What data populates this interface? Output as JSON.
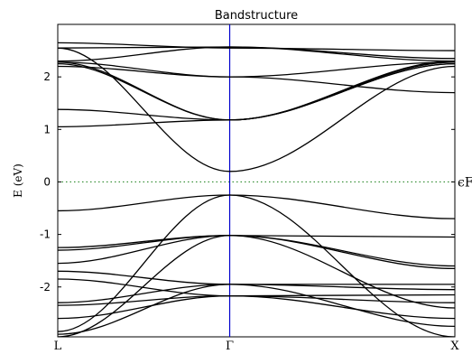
{
  "chart_data": {
    "type": "line",
    "title": "Bandstructure",
    "ylabel": "E (eV)",
    "ylim": [
      -2.95,
      3.0
    ],
    "x_ticks": [
      {
        "label": "L",
        "pos": 0.0
      },
      {
        "label": "Γ",
        "pos": 0.433
      },
      {
        "label": "X",
        "pos": 1.0
      }
    ],
    "y_ticks": [
      -2,
      -1,
      0,
      1,
      2
    ],
    "fermi": {
      "label": "ϵF",
      "energy": 0
    },
    "colors": {
      "bands": "#000000",
      "gamma_line": "#0000cc",
      "fermi_line": "#2e8b2e"
    },
    "series": [
      {
        "x": [
          0.0,
          0.433,
          1.0
        ],
        "y": [
          2.55,
          2.57,
          2.3
        ]
      },
      {
        "x": [
          0.0,
          0.433,
          1.0
        ],
        "y": [
          2.3,
          2.57,
          2.35
        ]
      },
      {
        "x": [
          0.0,
          0.433,
          1.0
        ],
        "y": [
          2.28,
          2.0,
          2.28
        ]
      },
      {
        "x": [
          0.0,
          0.433,
          1.0
        ],
        "y": [
          2.25,
          1.18,
          2.25
        ]
      },
      {
        "x": [
          0.0,
          0.433,
          1.0
        ],
        "y": [
          1.38,
          1.18,
          2.3
        ]
      },
      {
        "x": [
          0.0,
          0.433,
          1.0
        ],
        "y": [
          1.05,
          1.18,
          2.28
        ]
      },
      {
        "x": [
          0.0,
          0.433,
          1.0
        ],
        "y": [
          2.28,
          1.18,
          2.25
        ]
      },
      {
        "x": [
          0.0,
          0.433,
          1.0
        ],
        "y": [
          2.55,
          0.2,
          2.2
        ]
      },
      {
        "x": [
          0.0,
          0.433,
          1.0
        ],
        "y": [
          2.65,
          2.55,
          2.5
        ]
      },
      {
        "x": [
          0.0,
          0.433,
          1.0
        ],
        "y": [
          2.2,
          2.0,
          1.7
        ]
      },
      {
        "x": [
          0.0,
          0.433,
          1.0
        ],
        "y": [
          -0.55,
          -0.25,
          -0.7
        ]
      },
      {
        "x": [
          0.0,
          0.433,
          1.0
        ],
        "y": [
          -1.25,
          -1.02,
          -1.05
        ]
      },
      {
        "x": [
          0.0,
          0.433,
          1.0
        ],
        "y": [
          -1.3,
          -1.02,
          -1.65
        ]
      },
      {
        "x": [
          0.0,
          0.433,
          1.0
        ],
        "y": [
          -1.55,
          -1.02,
          -1.6
        ]
      },
      {
        "x": [
          0.0,
          0.433,
          1.0
        ],
        "y": [
          -1.7,
          -1.95,
          -1.95
        ]
      },
      {
        "x": [
          0.0,
          0.433,
          1.0
        ],
        "y": [
          -2.3,
          -1.95,
          -2.05
        ]
      },
      {
        "x": [
          0.0,
          0.433,
          1.0
        ],
        "y": [
          -2.35,
          -2.17,
          -2.15
        ]
      },
      {
        "x": [
          0.0,
          0.433,
          1.0
        ],
        "y": [
          -2.6,
          -2.17,
          -2.6
        ]
      },
      {
        "x": [
          0.0,
          0.433,
          1.0
        ],
        "y": [
          -2.85,
          -0.25,
          -2.95
        ]
      },
      {
        "x": [
          0.0,
          0.433,
          1.0
        ],
        "y": [
          -2.95,
          -1.02,
          -2.4
        ]
      },
      {
        "x": [
          0.0,
          0.433,
          1.0
        ],
        "y": [
          -1.85,
          -2.17,
          -2.3
        ]
      },
      {
        "x": [
          0.0,
          0.433,
          1.0
        ],
        "y": [
          -2.9,
          -1.95,
          -2.75
        ]
      }
    ]
  }
}
